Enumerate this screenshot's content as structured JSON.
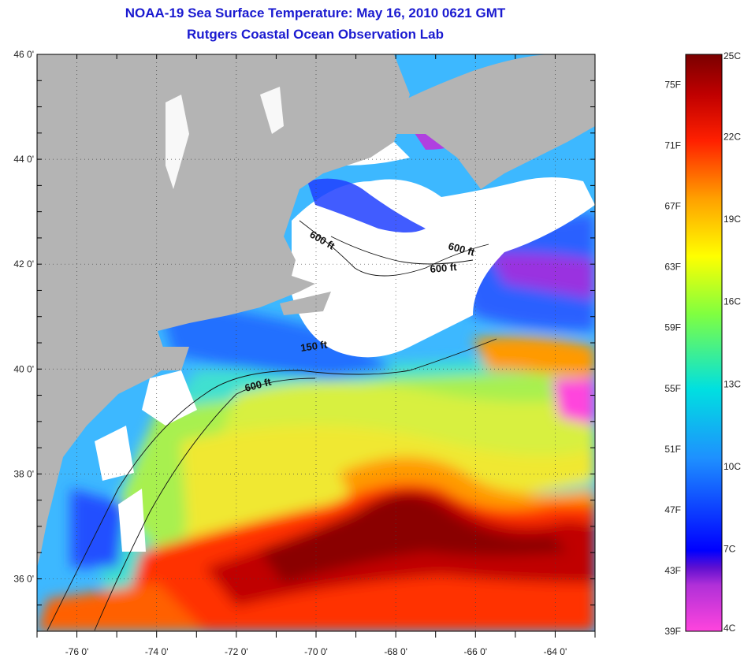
{
  "header": {
    "title": "NOAA-19 Sea Surface Temperature:  May 16, 2010 0621 GMT",
    "subtitle": "Rutgers Coastal Ocean Observation Lab"
  },
  "map": {
    "lon_range": [
      -77,
      -63
    ],
    "lat_range": [
      35,
      46
    ],
    "lat_labels": [
      {
        "lat": 46,
        "text": "46 0'"
      },
      {
        "lat": 44,
        "text": "44 0'"
      },
      {
        "lat": 42,
        "text": "42 0'"
      },
      {
        "lat": 40,
        "text": "40 0'"
      },
      {
        "lat": 38,
        "text": "38 0'"
      },
      {
        "lat": 36,
        "text": "36 0'"
      }
    ],
    "lon_labels": [
      {
        "lon": -76,
        "text": "-76 0'"
      },
      {
        "lon": -74,
        "text": "-74 0'"
      },
      {
        "lon": -72,
        "text": "-72 0'"
      },
      {
        "lon": -70,
        "text": "-70 0'"
      },
      {
        "lon": -68,
        "text": "-68 0'"
      },
      {
        "lon": -66,
        "text": "-66 0'"
      },
      {
        "lon": -64,
        "text": "-64 0'"
      }
    ],
    "contour_labels": [
      {
        "text": "600 ft"
      },
      {
        "text": "600 ft"
      },
      {
        "text": "600 ft"
      },
      {
        "text": "150 ft"
      },
      {
        "text": "600 ft"
      }
    ],
    "colors": {
      "land": "#b4b4b4",
      "cloud": "#ffffff",
      "gulf_stream": "#c40000",
      "core": "#8a0000",
      "shelf": "#1e90ff"
    }
  },
  "colorbar": {
    "range_f": [
      39,
      77
    ],
    "range_c": [
      4,
      25
    ],
    "f_labels": [
      "75F",
      "71F",
      "67F",
      "63F",
      "59F",
      "55F",
      "51F",
      "47F",
      "43F",
      "39F"
    ],
    "c_labels": [
      "25C",
      "22C",
      "19C",
      "16C",
      "13C",
      "10C",
      "7C",
      "4C"
    ]
  }
}
